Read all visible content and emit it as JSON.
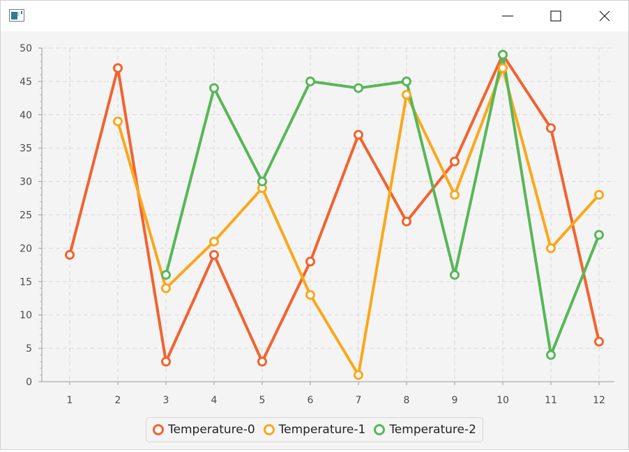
{
  "window": {
    "title": "",
    "icons": {
      "app": "app-window-icon",
      "minimize": "minimize-icon",
      "maximize": "maximize-icon",
      "close": "close-icon"
    }
  },
  "chart_data": {
    "type": "line",
    "title": "",
    "xlabel": "",
    "ylabel": "",
    "categories": [
      "1",
      "2",
      "3",
      "4",
      "5",
      "6",
      "7",
      "8",
      "9",
      "10",
      "11",
      "12"
    ],
    "ylim": [
      0,
      50
    ],
    "yticks": [
      0,
      5,
      10,
      15,
      20,
      25,
      30,
      35,
      40,
      45,
      50
    ],
    "grid": true,
    "legend_position": "bottom",
    "series": [
      {
        "name": "Temperature-0",
        "color": "#f3622d",
        "values": [
          19,
          47,
          3,
          19,
          3,
          18,
          37,
          24,
          33,
          49,
          38,
          6
        ]
      },
      {
        "name": "Temperature-1",
        "color": "#fba71b",
        "values": [
          null,
          39,
          14,
          21,
          29,
          13,
          1,
          43,
          28,
          47,
          20,
          28
        ]
      },
      {
        "name": "Temperature-2",
        "color": "#57b757",
        "values": [
          null,
          null,
          16,
          44,
          30,
          45,
          44,
          45,
          16,
          49,
          4,
          22
        ]
      }
    ]
  }
}
